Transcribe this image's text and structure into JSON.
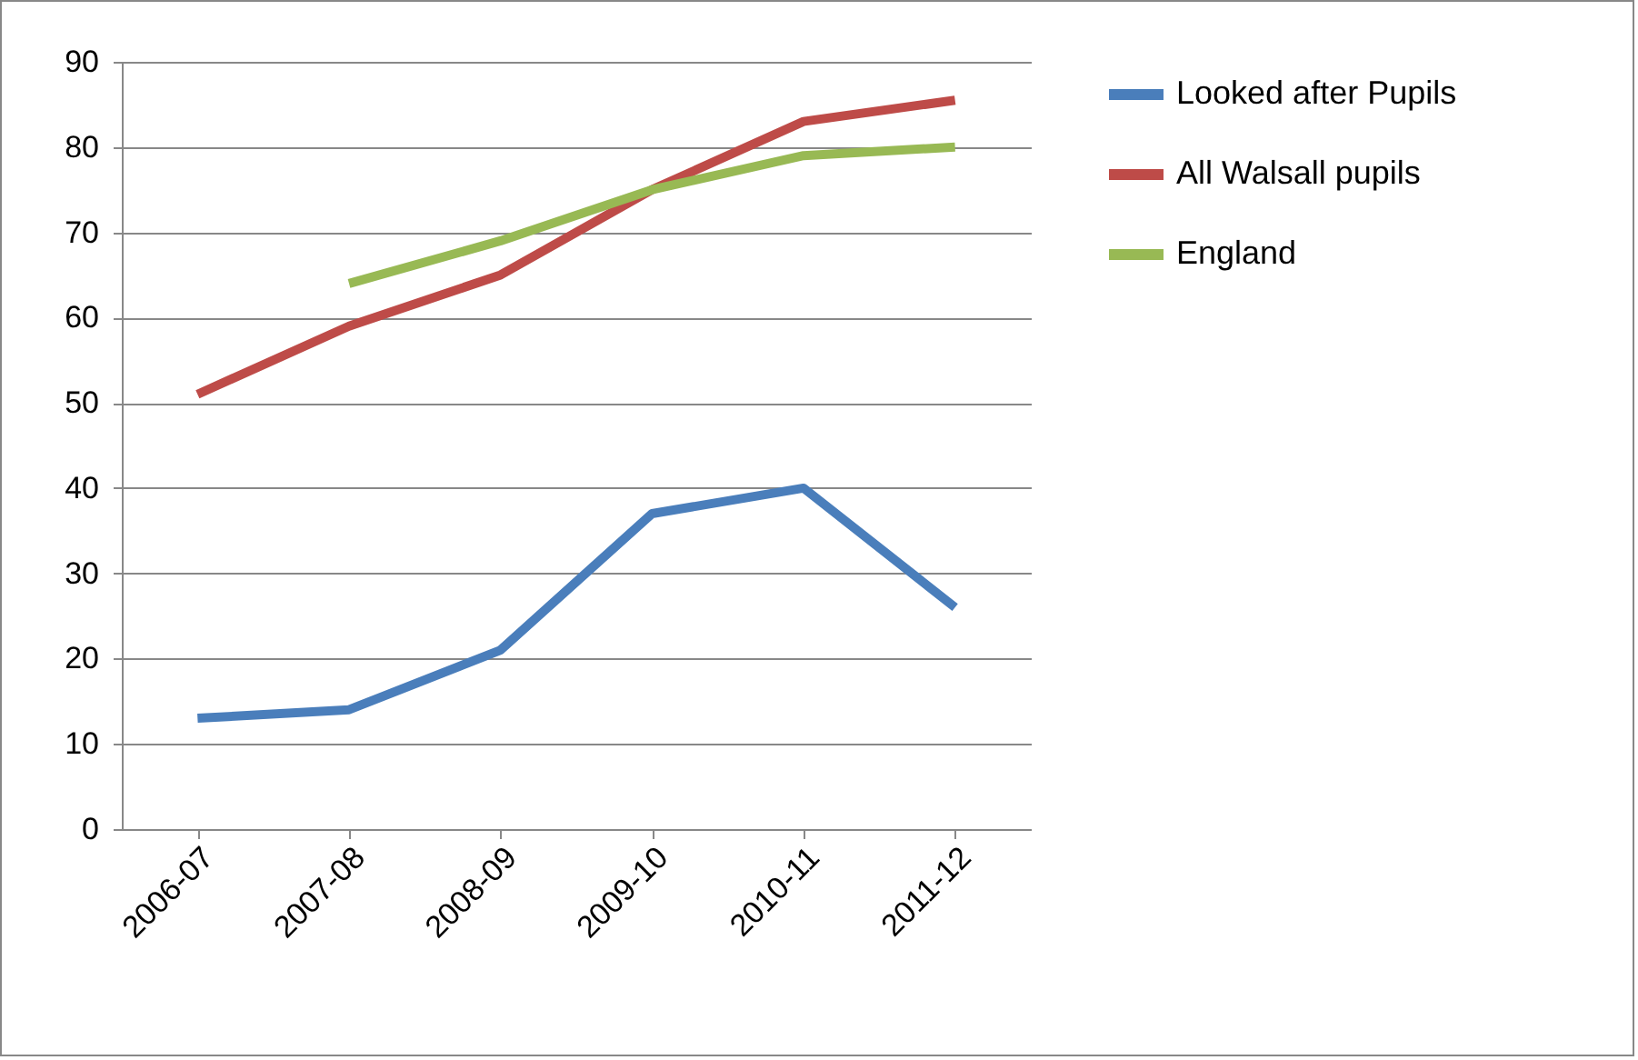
{
  "chart_data": {
    "type": "line",
    "categories": [
      "2006-07",
      "2007-08",
      "2008-09",
      "2009-10",
      "2010-11",
      "2011-12"
    ],
    "series": [
      {
        "name": "Looked after Pupils",
        "color": "#4a7ebb",
        "values": [
          13,
          14,
          21,
          37,
          40,
          26
        ]
      },
      {
        "name": "All Walsall pupils",
        "color": "#be4b48",
        "values": [
          51,
          59,
          65,
          75,
          83,
          85.5
        ]
      },
      {
        "name": "England",
        "color": "#98b954",
        "values": [
          null,
          64,
          69,
          75,
          79,
          80
        ]
      }
    ],
    "ylim": [
      0,
      90
    ],
    "yticks": [
      0,
      10,
      20,
      30,
      40,
      50,
      60,
      70,
      80,
      90
    ],
    "grid": "y",
    "legend": "right",
    "marker": "none",
    "line_style": "solid"
  }
}
